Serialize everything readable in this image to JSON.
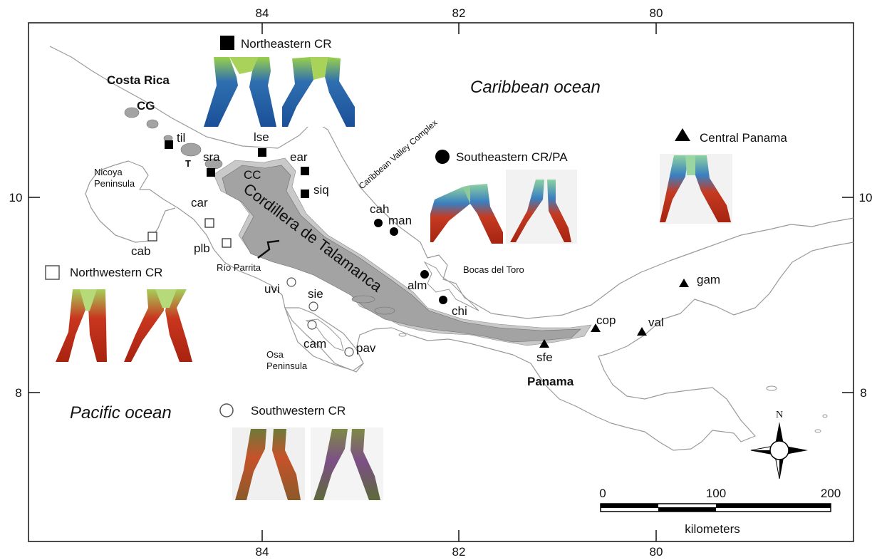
{
  "axes": {
    "lon_ticks": [
      "84",
      "82",
      "80"
    ],
    "lat_ticks": [
      "10",
      "8"
    ]
  },
  "labels": {
    "costa_rica": "Costa Rica",
    "cg": "CG",
    "t": "T",
    "cc": "CC",
    "cordillera": "Cordillera de Talamanca",
    "caribbean": "Caribbean ocean",
    "pacific": "Pacific ocean",
    "nicoya_1": "Nicoya",
    "nicoya_2": "Peninsula",
    "osa_1": "Osa",
    "osa_2": "Peninsula",
    "rio_parrita": "Río Parrita",
    "bocas": "Bocas del Toro",
    "caribbean_valley": "Caribbean Valley Complex",
    "panama": "Panama"
  },
  "legend": {
    "northeastern": "Northeastern CR",
    "northwestern": "Northwestern CR",
    "southeastern": "Southeastern CR/PA",
    "southwestern": "Southwestern CR",
    "central_panama": "Central Panama"
  },
  "sites": {
    "northeastern": [
      "til",
      "sra",
      "lse",
      "ear",
      "siq"
    ],
    "northwestern": [
      "car",
      "cab",
      "plb"
    ],
    "southwestern": [
      "uvi",
      "sie",
      "cam",
      "pav"
    ],
    "southeastern": [
      "cah",
      "man",
      "alm",
      "chi"
    ],
    "central_panama": [
      "sfe",
      "cop",
      "val",
      "gam"
    ]
  },
  "scale": {
    "ticks": [
      "0",
      "100",
      "200"
    ],
    "unit": "kilometers"
  },
  "compass": {
    "north": "N"
  },
  "colors": {
    "land_outline": "#9a9a9a",
    "highland": "#a3a3a3",
    "highland_light": "#c9c9c9",
    "marker": "#000000"
  }
}
